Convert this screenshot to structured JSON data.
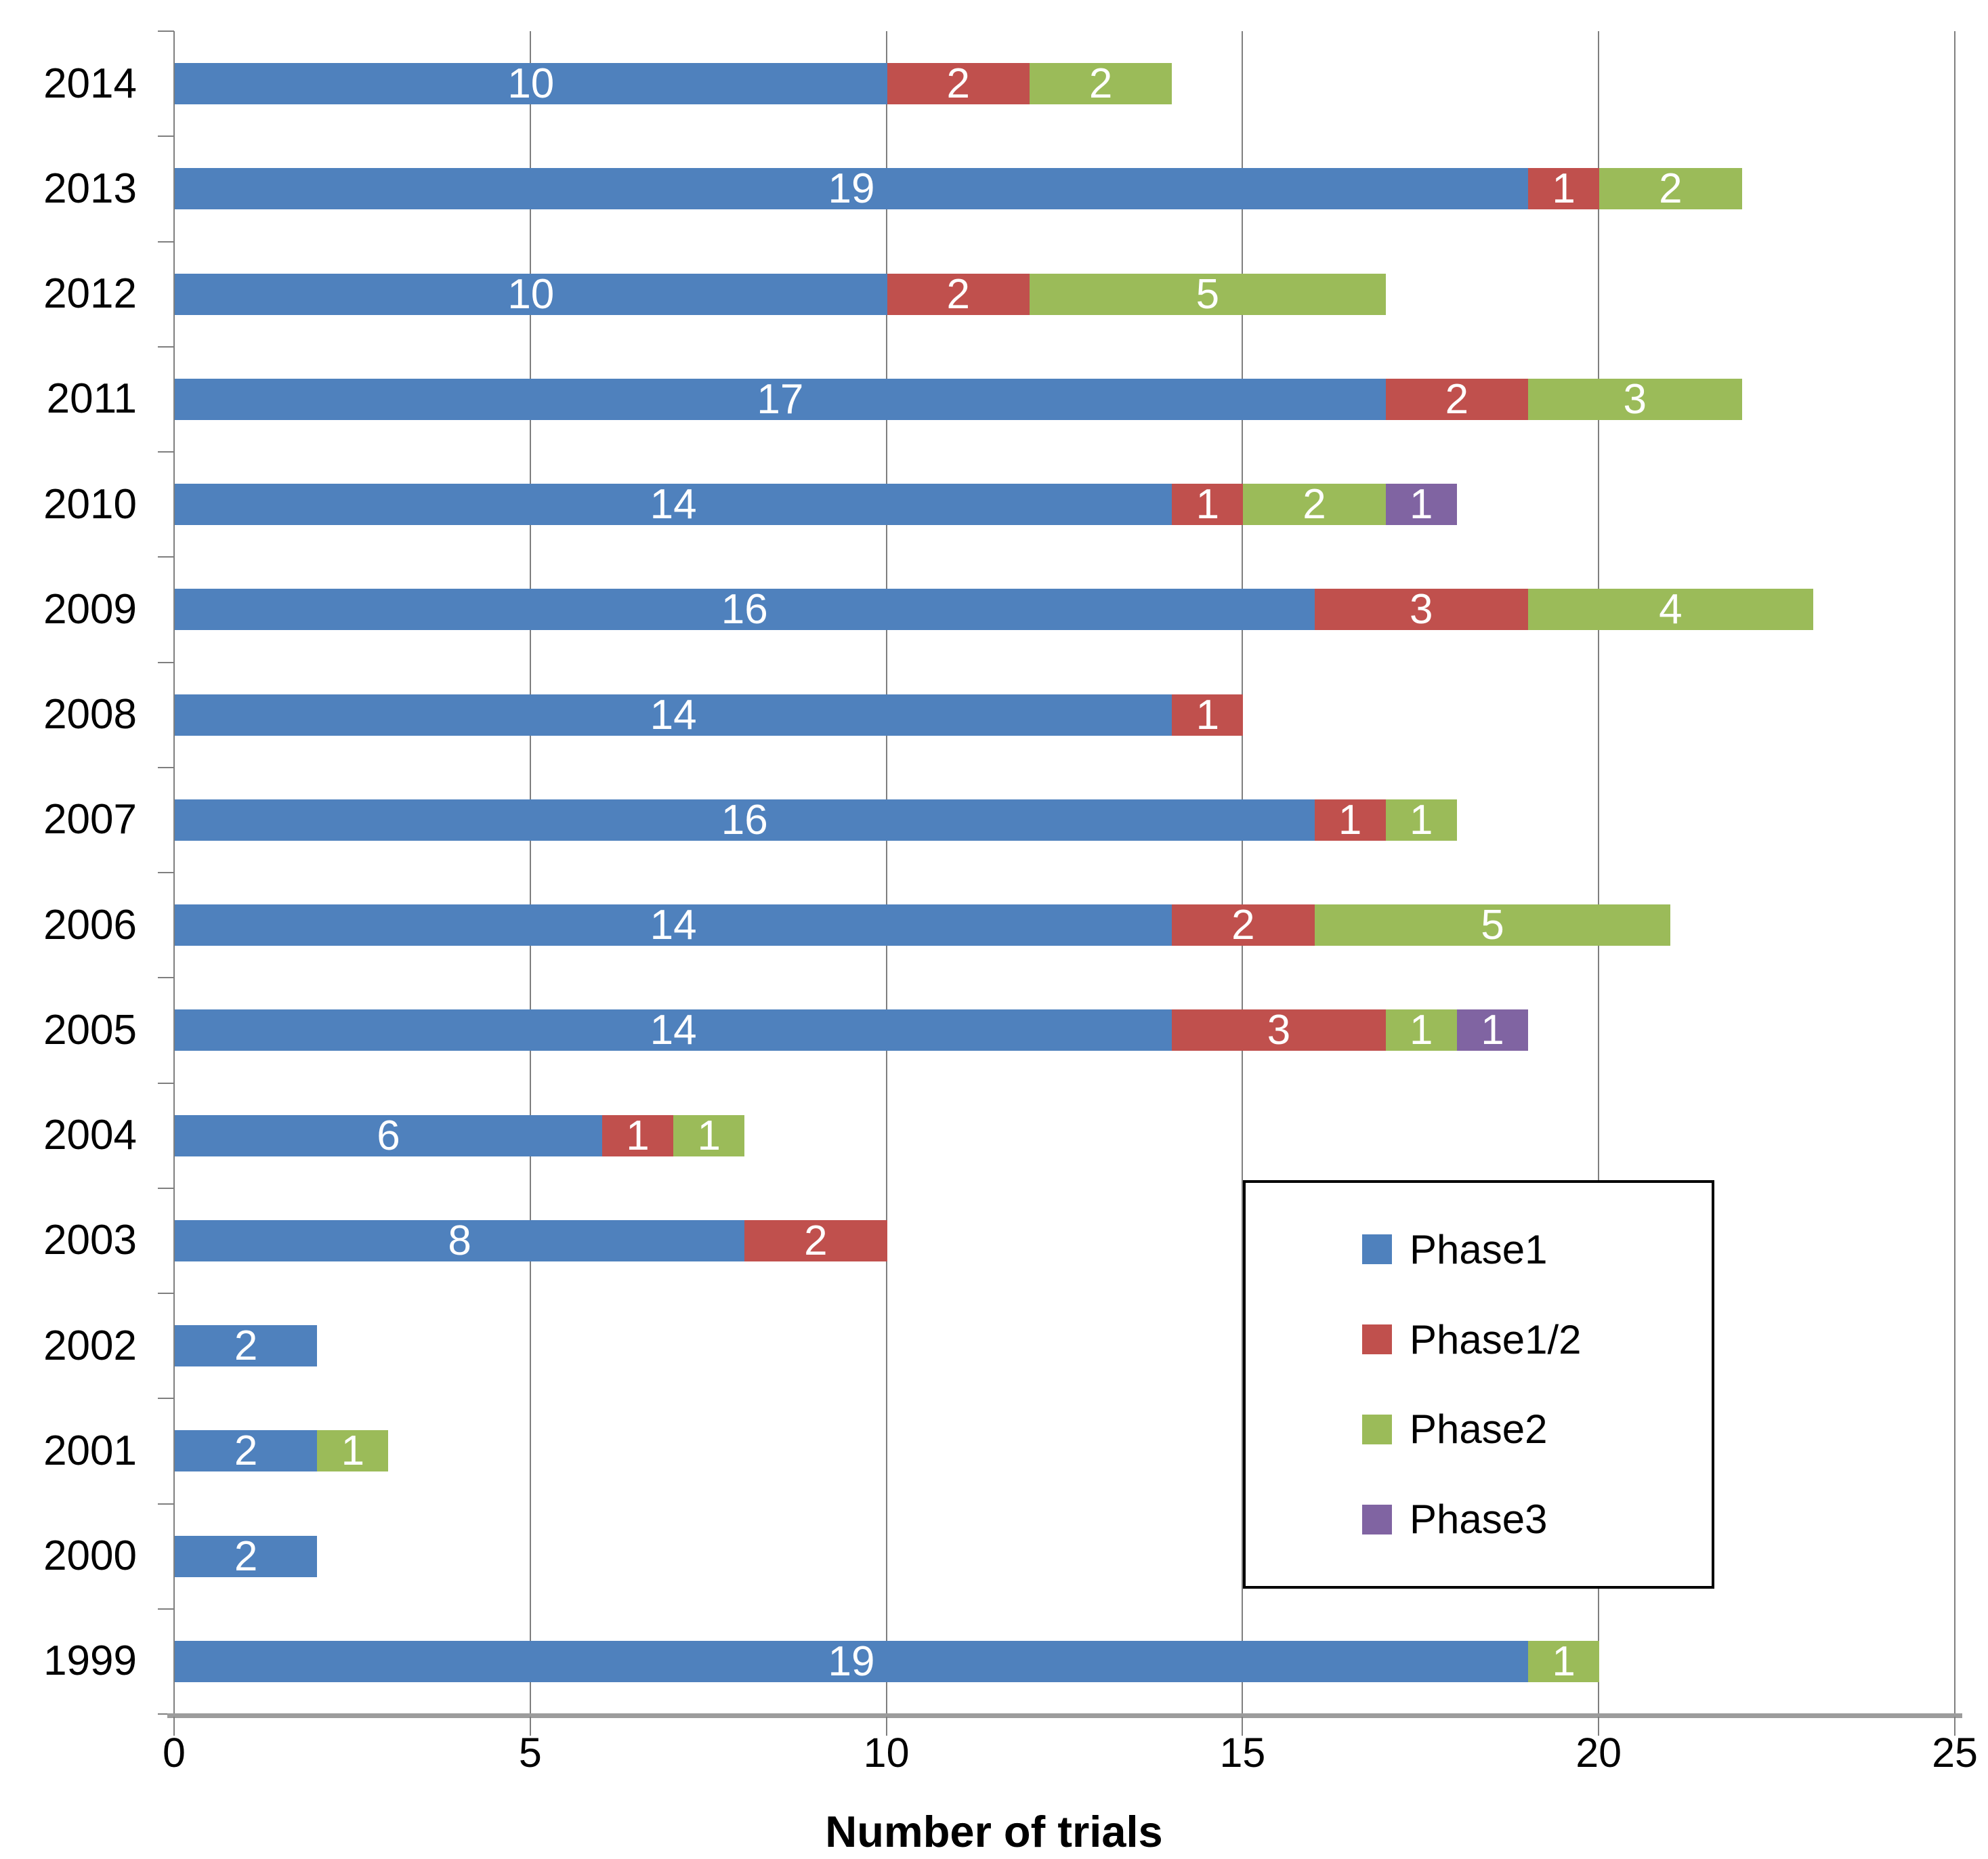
{
  "chart_data": {
    "type": "bar",
    "orientation": "horizontal",
    "stacked": true,
    "title": "",
    "xlabel": "Number of trials",
    "ylabel": "",
    "xlim": [
      0,
      25
    ],
    "xticks": [
      0,
      5,
      10,
      15,
      20,
      25
    ],
    "grid": true,
    "legend_position": "inside-right",
    "bar_label_color": "#FFFFFF",
    "categories": [
      "2014",
      "2013",
      "2012",
      "2011",
      "2010",
      "2009",
      "2008",
      "2007",
      "2006",
      "2005",
      "2004",
      "2003",
      "2002",
      "2001",
      "2000",
      "1999"
    ],
    "series": [
      {
        "name": "Phase1",
        "color": "#4F81BD",
        "values": [
          10,
          19,
          10,
          17,
          14,
          16,
          14,
          16,
          14,
          14,
          6,
          8,
          2,
          2,
          2,
          19
        ]
      },
      {
        "name": "Phase1/2",
        "color": "#C0504D",
        "values": [
          2,
          1,
          2,
          2,
          1,
          3,
          1,
          1,
          2,
          3,
          1,
          2,
          0,
          0,
          0,
          0
        ]
      },
      {
        "name": "Phase2",
        "color": "#9BBB59",
        "values": [
          2,
          2,
          5,
          3,
          2,
          4,
          0,
          1,
          5,
          1,
          1,
          0,
          0,
          1,
          0,
          1
        ]
      },
      {
        "name": "Phase3",
        "color": "#8064A2",
        "values": [
          0,
          0,
          0,
          0,
          1,
          0,
          0,
          0,
          0,
          1,
          0,
          0,
          0,
          0,
          0,
          0
        ]
      }
    ]
  },
  "style": {
    "gridline_color": "#7F7F7F",
    "axis_color": "#9C9C9C",
    "legend_border_color": "#000000",
    "text_color": "#000000"
  }
}
